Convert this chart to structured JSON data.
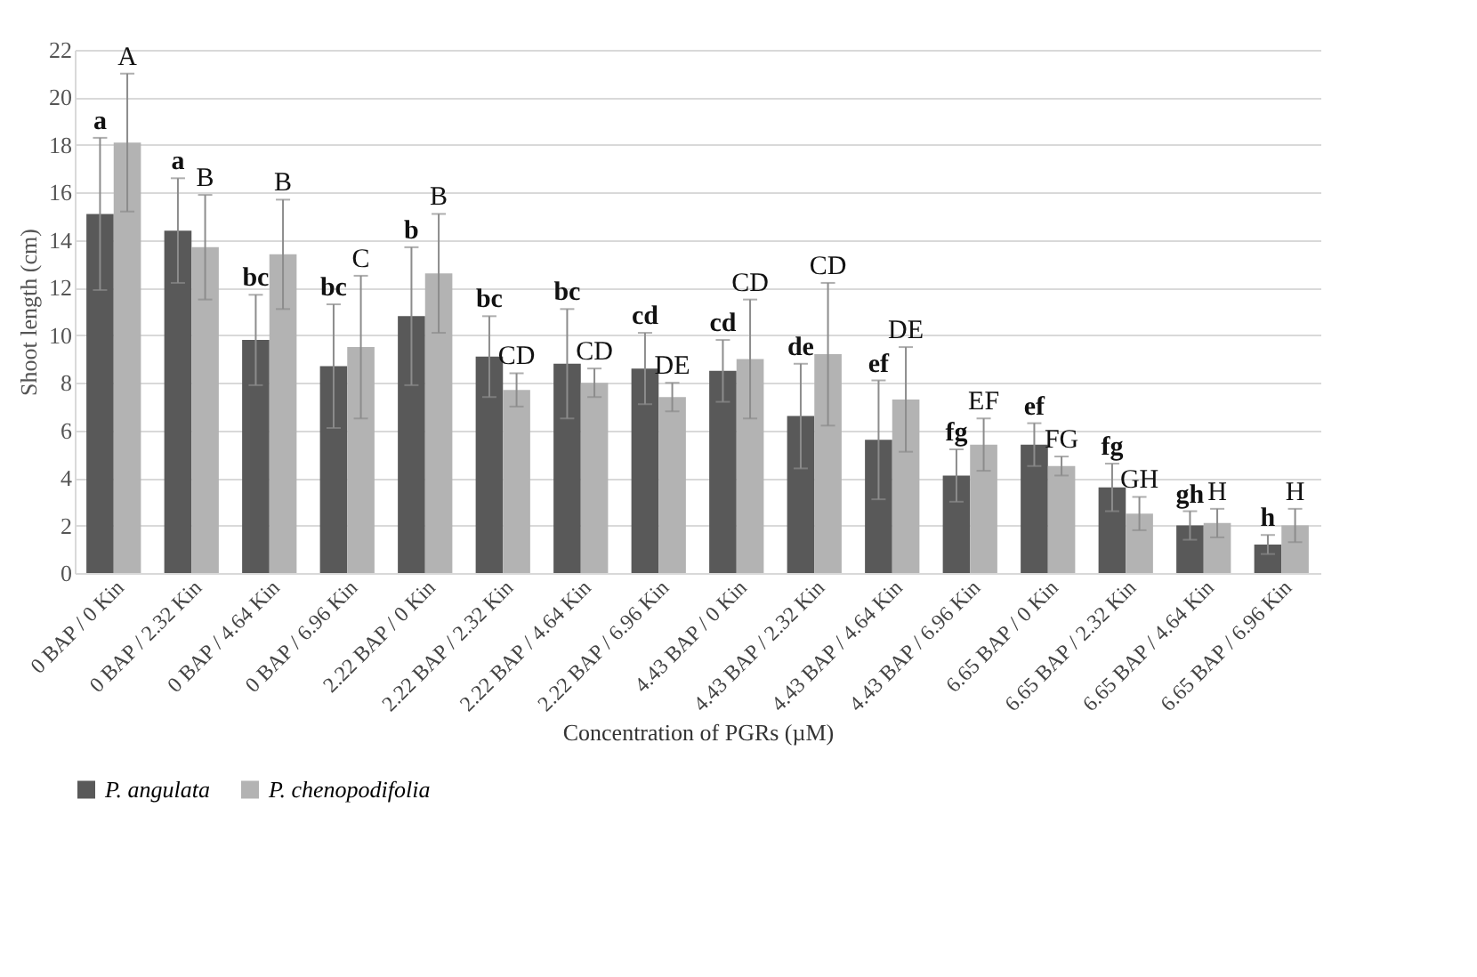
{
  "chart_data": {
    "type": "bar",
    "xlabel": "Concentration of PGRs (µM)",
    "ylabel": "Shoot length (cm)",
    "categories": [
      "0 BAP / 0 Kin",
      "0 BAP / 2.32 Kin",
      "0 BAP / 4.64 Kin",
      "0 BAP / 6.96 Kin",
      "2.22 BAP / 0 Kin",
      "2.22 BAP / 2.32 Kin",
      "2.22 BAP / 4.64 Kin",
      "2.22 BAP / 6.96 Kin",
      "4.43 BAP / 0 Kin",
      "4.43 BAP / 2.32 Kin",
      "4.43 BAP / 4.64 Kin",
      "4.43 BAP / 6.96 Kin",
      "6.65 BAP / 0 Kin",
      "6.65 BAP / 2.32 Kin",
      "6.65 BAP / 4.64 Kin",
      "6.65 BAP / 6.96 Kin"
    ],
    "series": [
      {
        "name": "P. angulata",
        "color": "#595959",
        "values": [
          15.1,
          14.4,
          9.8,
          8.7,
          10.8,
          9.1,
          8.8,
          8.6,
          8.5,
          6.6,
          5.6,
          4.1,
          5.4,
          3.6,
          2.0,
          1.2
        ],
        "errors": [
          3.2,
          2.2,
          1.9,
          2.6,
          2.9,
          1.7,
          2.3,
          1.5,
          1.3,
          2.2,
          2.5,
          1.1,
          0.9,
          1.0,
          0.6,
          0.4
        ]
      },
      {
        "name": "P. chenopodifolia",
        "color": "#b3b3b3",
        "values": [
          18.1,
          13.7,
          13.4,
          9.5,
          12.6,
          7.7,
          8.0,
          7.4,
          9.0,
          9.2,
          7.3,
          5.4,
          4.5,
          2.5,
          2.1,
          2.0
        ],
        "errors": [
          2.9,
          2.2,
          2.3,
          3.0,
          2.5,
          0.7,
          0.6,
          0.6,
          2.5,
          3.0,
          2.2,
          1.1,
          0.4,
          0.7,
          0.6,
          0.7
        ]
      }
    ],
    "ylim": [
      0,
      22
    ],
    "yticks": [
      0,
      2,
      4,
      6,
      8,
      10,
      12,
      14,
      16,
      18,
      20,
      22
    ],
    "grid": "y",
    "legend": "bottom",
    "annotations": [
      "a",
      "A",
      "a",
      "B",
      "bc",
      "B",
      "bc",
      "C",
      "b",
      "B",
      "bc",
      "CD",
      "bc",
      "CD",
      "cd",
      "DE",
      "cd",
      "CD",
      "de",
      "CD",
      "ef",
      "DE",
      "fg",
      "EF",
      "ef",
      "FG",
      "fg",
      "GH",
      "gh",
      "H",
      "h",
      "H"
    ]
  }
}
